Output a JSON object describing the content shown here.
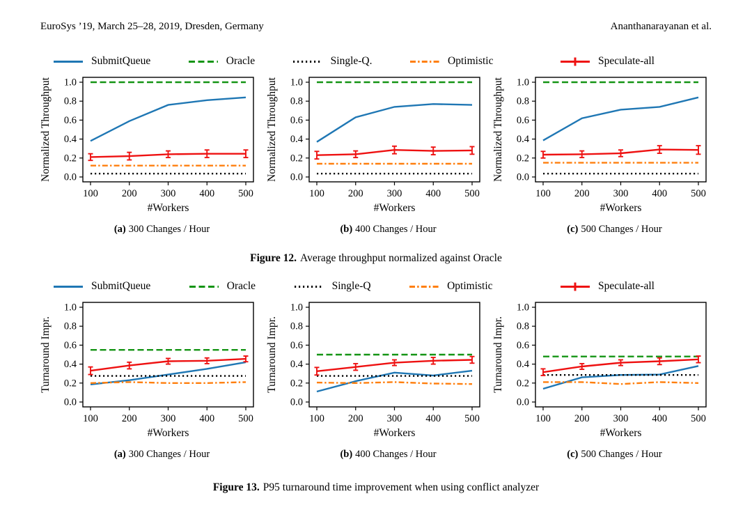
{
  "header": {
    "left": "EuroSys ’19, March 25–28, 2019, Dresden, Germany",
    "right": "Ananthanarayanan et al."
  },
  "colors": {
    "submitqueue_blue": "#1f77b4",
    "oracle_green": "#149414",
    "singleq_black": "#000000",
    "optimistic_orange": "#ff7f0e",
    "speculate_red": "#ee1111"
  },
  "figures": [
    {
      "id": "figure-12",
      "caption_label": "Figure 12.",
      "caption_text": "Average throughput normalized against Oracle",
      "legend": [
        {
          "label": "SubmitQueue",
          "color": "#1f77b4",
          "dash": "solid",
          "marker": ""
        },
        {
          "label": "Oracle",
          "color": "#149414",
          "dash": "dashed",
          "marker": ""
        },
        {
          "label": "Single-Q.",
          "color": "#000000",
          "dash": "dotted",
          "marker": ""
        },
        {
          "label": "Optimistic",
          "color": "#ff7f0e",
          "dash": "dashdot",
          "marker": ""
        },
        {
          "label": "Speculate-all",
          "color": "#ee1111",
          "dash": "solid",
          "marker": "plus"
        }
      ],
      "chart_indexes": [
        0,
        1,
        2
      ]
    },
    {
      "id": "figure-13",
      "caption_label": "Figure 13.",
      "caption_text": "P95 turnaround time improvement when using conflict analyzer",
      "legend": [
        {
          "label": "SubmitQueue",
          "color": "#1f77b4",
          "dash": "solid",
          "marker": ""
        },
        {
          "label": "Oracle",
          "color": "#149414",
          "dash": "dashed",
          "marker": ""
        },
        {
          "label": "Single-Q",
          "color": "#000000",
          "dash": "dotted",
          "marker": ""
        },
        {
          "label": "Optimistic",
          "color": "#ff7f0e",
          "dash": "dashdot",
          "marker": ""
        },
        {
          "label": "Speculate-all",
          "color": "#ee1111",
          "dash": "solid",
          "marker": "plus"
        }
      ],
      "chart_indexes": [
        3,
        4,
        5
      ]
    }
  ],
  "chart_data": [
    {
      "type": "line",
      "figure": "Figure 12",
      "subcaption_label": "(a)",
      "subcaption_text": "300 Changes / Hour",
      "xlabel": "#Workers",
      "ylabel": "Normalized Throughput",
      "x": [
        100,
        200,
        300,
        400,
        500
      ],
      "xlim": [
        100,
        500
      ],
      "ylim": [
        0.0,
        1.0
      ],
      "yticks": [
        0.0,
        0.2,
        0.4,
        0.6,
        0.8,
        1.0
      ],
      "legend_position": "top",
      "grid": false,
      "series": [
        {
          "name": "SubmitQueue",
          "color": "#1f77b4",
          "dash": "solid",
          "values": [
            0.38,
            0.59,
            0.76,
            0.81,
            0.84
          ]
        },
        {
          "name": "Oracle",
          "color": "#149414",
          "dash": "dashed",
          "values": [
            1.0,
            1.0,
            1.0,
            1.0,
            1.0
          ]
        },
        {
          "name": "Single-Q.",
          "color": "#000000",
          "dash": "dotted",
          "values": [
            0.035,
            0.035,
            0.035,
            0.035,
            0.035
          ]
        },
        {
          "name": "Optimistic",
          "color": "#ff7f0e",
          "dash": "dashdot",
          "values": [
            0.12,
            0.12,
            0.12,
            0.12,
            0.12
          ]
        },
        {
          "name": "Speculate-all",
          "color": "#ee1111",
          "dash": "solid",
          "marker": "plus",
          "values": [
            0.21,
            0.22,
            0.24,
            0.245,
            0.245
          ],
          "yerr": [
            0.035,
            0.04,
            0.035,
            0.04,
            0.04
          ]
        }
      ]
    },
    {
      "type": "line",
      "figure": "Figure 12",
      "subcaption_label": "(b)",
      "subcaption_text": "400 Changes / Hour",
      "xlabel": "#Workers",
      "ylabel": "Normalized Throughput",
      "x": [
        100,
        200,
        300,
        400,
        500
      ],
      "xlim": [
        100,
        500
      ],
      "ylim": [
        0.0,
        1.0
      ],
      "yticks": [
        0.0,
        0.2,
        0.4,
        0.6,
        0.8,
        1.0
      ],
      "legend_position": "top",
      "grid": false,
      "series": [
        {
          "name": "SubmitQueue",
          "color": "#1f77b4",
          "dash": "solid",
          "values": [
            0.37,
            0.63,
            0.74,
            0.77,
            0.76
          ]
        },
        {
          "name": "Oracle",
          "color": "#149414",
          "dash": "dashed",
          "values": [
            1.0,
            1.0,
            1.0,
            1.0,
            1.0
          ]
        },
        {
          "name": "Single-Q.",
          "color": "#000000",
          "dash": "dotted",
          "values": [
            0.035,
            0.035,
            0.035,
            0.035,
            0.035
          ]
        },
        {
          "name": "Optimistic",
          "color": "#ff7f0e",
          "dash": "dashdot",
          "values": [
            0.14,
            0.14,
            0.14,
            0.14,
            0.14
          ]
        },
        {
          "name": "Speculate-all",
          "color": "#ee1111",
          "dash": "solid",
          "marker": "plus",
          "values": [
            0.23,
            0.24,
            0.285,
            0.275,
            0.28
          ],
          "yerr": [
            0.04,
            0.035,
            0.04,
            0.04,
            0.04
          ]
        }
      ]
    },
    {
      "type": "line",
      "figure": "Figure 12",
      "subcaption_label": "(c)",
      "subcaption_text": "500 Changes / Hour",
      "xlabel": "#Workers",
      "ylabel": "Normalized Throughput",
      "x": [
        100,
        200,
        300,
        400,
        500
      ],
      "xlim": [
        100,
        500
      ],
      "ylim": [
        0.0,
        1.0
      ],
      "yticks": [
        0.0,
        0.2,
        0.4,
        0.6,
        0.8,
        1.0
      ],
      "legend_position": "top",
      "grid": false,
      "series": [
        {
          "name": "SubmitQueue",
          "color": "#1f77b4",
          "dash": "solid",
          "values": [
            0.385,
            0.62,
            0.71,
            0.74,
            0.84
          ]
        },
        {
          "name": "Oracle",
          "color": "#149414",
          "dash": "dashed",
          "values": [
            1.0,
            1.0,
            1.0,
            1.0,
            1.0
          ]
        },
        {
          "name": "Single-Q.",
          "color": "#000000",
          "dash": "dotted",
          "values": [
            0.035,
            0.035,
            0.035,
            0.035,
            0.035
          ]
        },
        {
          "name": "Optimistic",
          "color": "#ff7f0e",
          "dash": "dashdot",
          "values": [
            0.15,
            0.15,
            0.15,
            0.15,
            0.15
          ]
        },
        {
          "name": "Speculate-all",
          "color": "#ee1111",
          "dash": "solid",
          "marker": "plus",
          "values": [
            0.235,
            0.24,
            0.25,
            0.29,
            0.285
          ],
          "yerr": [
            0.035,
            0.035,
            0.035,
            0.04,
            0.045
          ]
        }
      ]
    },
    {
      "type": "line",
      "figure": "Figure 13",
      "subcaption_label": "(a)",
      "subcaption_text": "300 Changes / Hour",
      "xlabel": "#Workers",
      "ylabel": "Turnaround Impr.",
      "x": [
        100,
        200,
        300,
        400,
        500
      ],
      "xlim": [
        100,
        500
      ],
      "ylim": [
        0.0,
        1.0
      ],
      "yticks": [
        0.0,
        0.2,
        0.4,
        0.6,
        0.8,
        1.0
      ],
      "legend_position": "top",
      "grid": false,
      "series": [
        {
          "name": "SubmitQueue",
          "color": "#1f77b4",
          "dash": "solid",
          "values": [
            0.185,
            0.23,
            0.29,
            0.35,
            0.42
          ]
        },
        {
          "name": "Oracle",
          "color": "#149414",
          "dash": "dashed",
          "values": [
            0.55,
            0.55,
            0.55,
            0.55,
            0.55
          ]
        },
        {
          "name": "Single-Q",
          "color": "#000000",
          "dash": "dotted",
          "values": [
            0.275,
            0.275,
            0.275,
            0.275,
            0.275
          ]
        },
        {
          "name": "Optimistic",
          "color": "#ff7f0e",
          "dash": "dashdot",
          "values": [
            0.2,
            0.21,
            0.2,
            0.2,
            0.21
          ]
        },
        {
          "name": "Speculate-all",
          "color": "#ee1111",
          "dash": "solid",
          "marker": "plus",
          "values": [
            0.33,
            0.385,
            0.43,
            0.435,
            0.455
          ],
          "yerr": [
            0.04,
            0.035,
            0.03,
            0.03,
            0.03
          ]
        }
      ]
    },
    {
      "type": "line",
      "figure": "Figure 13",
      "subcaption_label": "(b)",
      "subcaption_text": "400 Changes / Hour",
      "xlabel": "#Workers",
      "ylabel": "Turnaround Impr.",
      "x": [
        100,
        200,
        300,
        400,
        500
      ],
      "xlim": [
        100,
        500
      ],
      "ylim": [
        0.0,
        1.0
      ],
      "yticks": [
        0.0,
        0.2,
        0.4,
        0.6,
        0.8,
        1.0
      ],
      "legend_position": "top",
      "grid": false,
      "series": [
        {
          "name": "SubmitQueue",
          "color": "#1f77b4",
          "dash": "solid",
          "values": [
            0.11,
            0.22,
            0.31,
            0.28,
            0.33
          ]
        },
        {
          "name": "Oracle",
          "color": "#149414",
          "dash": "dashed",
          "values": [
            0.5,
            0.5,
            0.5,
            0.5,
            0.5
          ]
        },
        {
          "name": "Single-Q",
          "color": "#000000",
          "dash": "dotted",
          "values": [
            0.275,
            0.275,
            0.275,
            0.275,
            0.275
          ]
        },
        {
          "name": "Optimistic",
          "color": "#ff7f0e",
          "dash": "dashdot",
          "values": [
            0.205,
            0.2,
            0.21,
            0.195,
            0.19
          ]
        },
        {
          "name": "Speculate-all",
          "color": "#ee1111",
          "dash": "solid",
          "marker": "plus",
          "values": [
            0.325,
            0.37,
            0.415,
            0.435,
            0.445
          ],
          "yerr": [
            0.04,
            0.035,
            0.03,
            0.035,
            0.035
          ]
        }
      ]
    },
    {
      "type": "line",
      "figure": "Figure 13",
      "subcaption_label": "(c)",
      "subcaption_text": "500 Changes / Hour",
      "xlabel": "#Workers",
      "ylabel": "Turnaround Impr.",
      "x": [
        100,
        200,
        300,
        400,
        500
      ],
      "xlim": [
        100,
        500
      ],
      "ylim": [
        0.0,
        1.0
      ],
      "yticks": [
        0.0,
        0.2,
        0.4,
        0.6,
        0.8,
        1.0
      ],
      "legend_position": "top",
      "grid": false,
      "series": [
        {
          "name": "SubmitQueue",
          "color": "#1f77b4",
          "dash": "solid",
          "values": [
            0.14,
            0.26,
            0.285,
            0.29,
            0.38
          ]
        },
        {
          "name": "Oracle",
          "color": "#149414",
          "dash": "dashed",
          "values": [
            0.48,
            0.48,
            0.48,
            0.48,
            0.48
          ]
        },
        {
          "name": "Single-Q",
          "color": "#000000",
          "dash": "dotted",
          "values": [
            0.285,
            0.285,
            0.285,
            0.285,
            0.285
          ]
        },
        {
          "name": "Optimistic",
          "color": "#ff7f0e",
          "dash": "dashdot",
          "values": [
            0.21,
            0.21,
            0.19,
            0.21,
            0.2
          ]
        },
        {
          "name": "Speculate-all",
          "color": "#ee1111",
          "dash": "solid",
          "marker": "plus",
          "values": [
            0.315,
            0.375,
            0.415,
            0.43,
            0.45
          ],
          "yerr": [
            0.035,
            0.03,
            0.03,
            0.035,
            0.035
          ]
        }
      ]
    }
  ]
}
